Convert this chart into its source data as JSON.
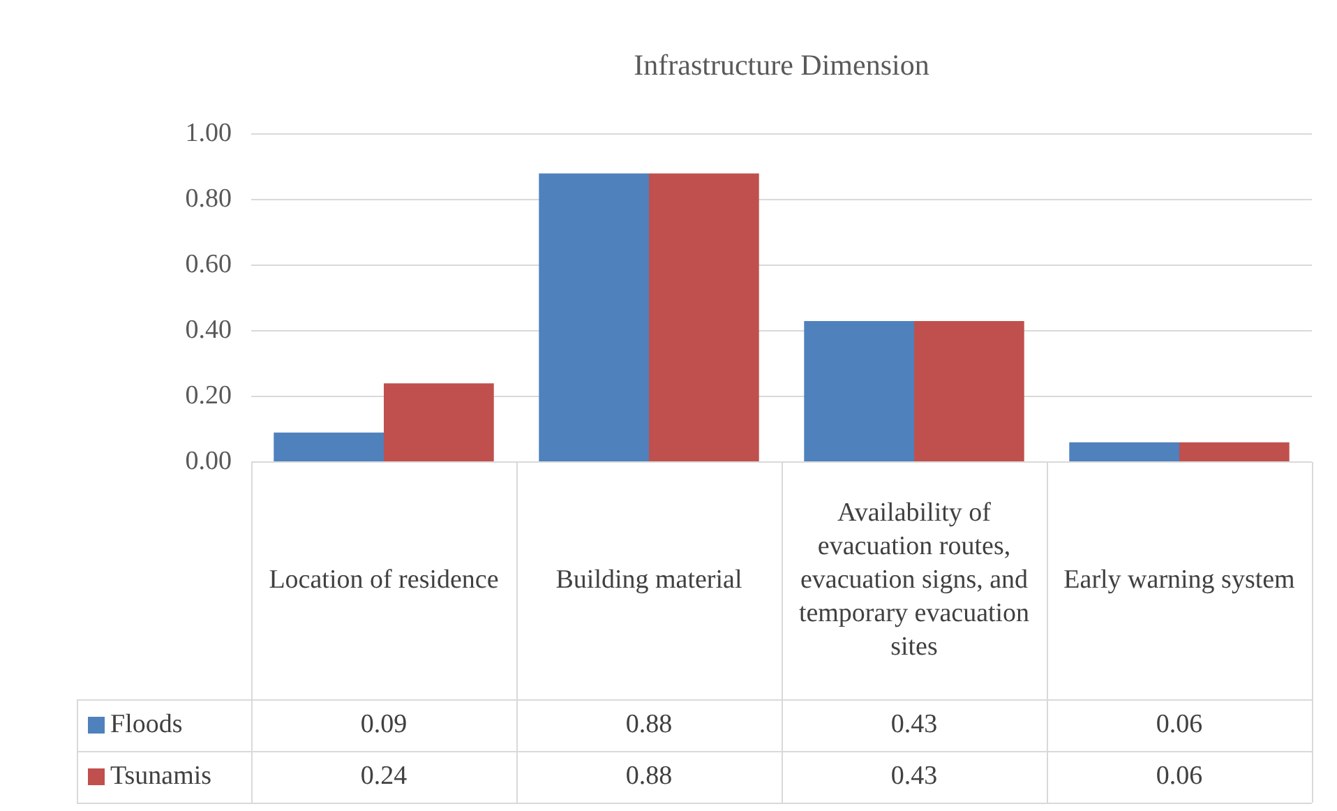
{
  "chart_data": {
    "type": "bar",
    "title": "Infrastructure Dimension",
    "categories": [
      "Location of residence",
      "Building material",
      "Availability of evacuation routes, evacuation signs, and temporary evacuation sites",
      "Early warning system"
    ],
    "series": [
      {
        "name": "Floods",
        "color": "#4f81bd",
        "values": [
          0.09,
          0.88,
          0.43,
          0.06
        ]
      },
      {
        "name": "Tsunamis",
        "color": "#c0504d",
        "values": [
          0.24,
          0.88,
          0.43,
          0.06
        ]
      }
    ],
    "ylim": [
      0,
      1
    ],
    "yticks": [
      {
        "value": 0,
        "label": "0.00"
      },
      {
        "value": 0.2,
        "label": "0.20"
      },
      {
        "value": 0.4,
        "label": "0.40"
      },
      {
        "value": 0.6,
        "label": "0.60"
      },
      {
        "value": 0.8,
        "label": "0.80"
      },
      {
        "value": 1,
        "label": "1.00"
      }
    ],
    "grid": "y",
    "legend": "bottom",
    "data_labels": true
  }
}
